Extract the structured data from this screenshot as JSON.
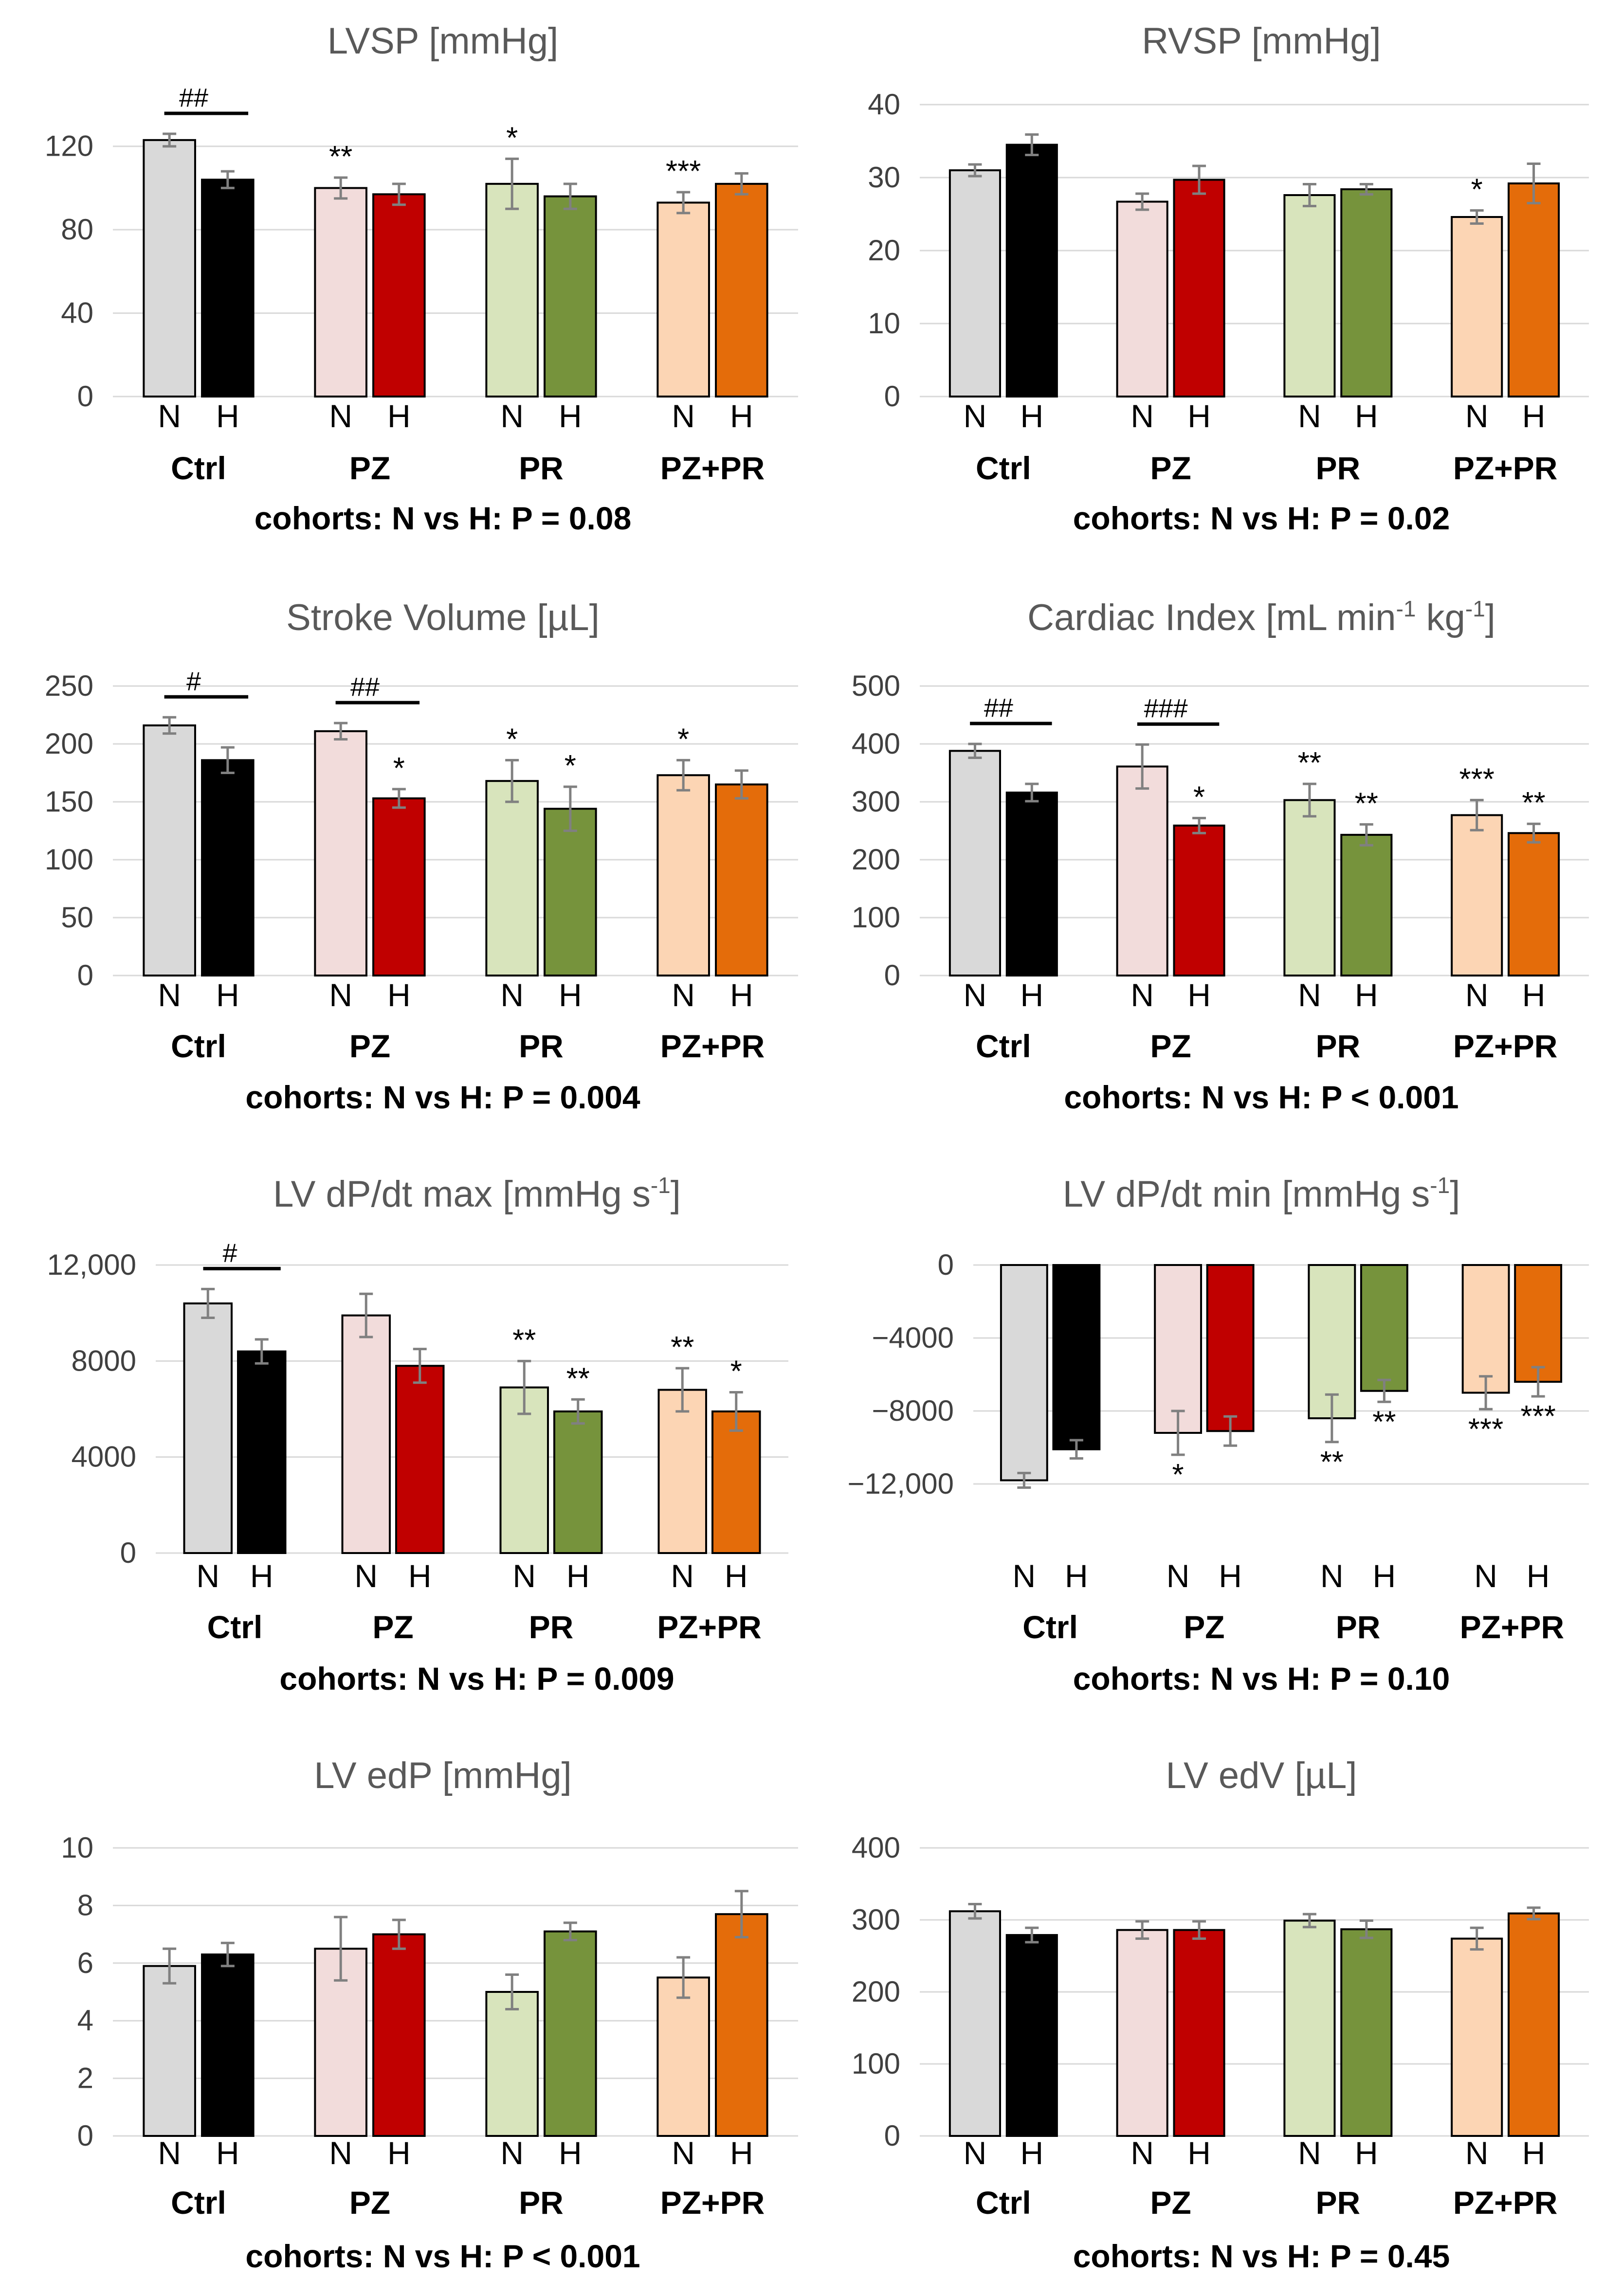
{
  "colors": {
    "N": [
      "#D9D9D9",
      "#F2DCDB",
      "#D8E4BC",
      "#FCD5B4"
    ],
    "H": [
      "#000000",
      "#C00000",
      "#76933C",
      "#E46C0A"
    ]
  },
  "chart_data": [
    {
      "type": "bar",
      "title": "LVSP [mmHg]",
      "groups": [
        "Ctrl",
        "PZ",
        "PR",
        "PZ+PR"
      ],
      "bar_labels": [
        "N",
        "H"
      ],
      "series": [
        {
          "name": "N",
          "values": [
            123,
            100,
            102,
            93
          ],
          "errors": [
            3,
            5,
            12,
            5
          ]
        },
        {
          "name": "H",
          "values": [
            104,
            97,
            96,
            102
          ],
          "errors": [
            4,
            5,
            6,
            5
          ]
        }
      ],
      "ylim": [
        0,
        140
      ],
      "yticks": [
        0,
        40,
        80,
        120
      ],
      "yticks_labels": [
        "0",
        "40",
        "80",
        "120"
      ],
      "stars": [
        {
          "group": 1,
          "bar": 0,
          "text": "**"
        },
        {
          "group": 2,
          "bar": 0,
          "text": "*"
        },
        {
          "group": 3,
          "bar": 0,
          "text": "***"
        }
      ],
      "hash": [
        {
          "group": 0,
          "text": "##"
        }
      ],
      "caption": "cohorts: N vs H: P = 0.08"
    },
    {
      "type": "bar",
      "title": "RVSP [mmHg]",
      "groups": [
        "Ctrl",
        "PZ",
        "PR",
        "PZ+PR"
      ],
      "bar_labels": [
        "N",
        "H"
      ],
      "series": [
        {
          "name": "N",
          "values": [
            31,
            26.7,
            27.6,
            24.6
          ],
          "errors": [
            0.8,
            1.1,
            1.5,
            0.9
          ]
        },
        {
          "name": "H",
          "values": [
            34.5,
            29.7,
            28.4,
            29.2
          ],
          "errors": [
            1.4,
            1.9,
            0.7,
            2.7
          ]
        }
      ],
      "ylim": [
        0,
        40
      ],
      "yticks": [
        0,
        10,
        20,
        30,
        40
      ],
      "yticks_labels": [
        "0",
        "10",
        "20",
        "30",
        "40"
      ],
      "stars": [
        {
          "group": 3,
          "bar": 0,
          "text": "*"
        }
      ],
      "hash": [],
      "caption": "cohorts: N vs H: P = 0.02"
    },
    {
      "type": "bar",
      "title": "Stroke Volume [µL]",
      "groups": [
        "Ctrl",
        "PZ",
        "PR",
        "PZ+PR"
      ],
      "bar_labels": [
        "N",
        "H"
      ],
      "series": [
        {
          "name": "N",
          "values": [
            216,
            211,
            168,
            173
          ],
          "errors": [
            7,
            7,
            18,
            13
          ]
        },
        {
          "name": "H",
          "values": [
            186,
            153,
            144,
            165
          ],
          "errors": [
            11,
            8,
            19,
            12
          ]
        }
      ],
      "ylim": [
        0,
        250
      ],
      "yticks": [
        0,
        50,
        100,
        150,
        200,
        250
      ],
      "yticks_labels": [
        "0",
        "50",
        "100",
        "150",
        "200",
        "250"
      ],
      "stars": [
        {
          "group": 1,
          "bar": 1,
          "text": "*"
        },
        {
          "group": 2,
          "bar": 0,
          "text": "*"
        },
        {
          "group": 2,
          "bar": 1,
          "text": "*"
        },
        {
          "group": 3,
          "bar": 0,
          "text": "*"
        }
      ],
      "hash": [
        {
          "group": 0,
          "text": "#"
        },
        {
          "group": 1,
          "text": "##"
        }
      ],
      "caption": "cohorts: N vs H: P = 0.004"
    },
    {
      "type": "bar",
      "title": "Cardiac Index [mL min-1 kg-1]",
      "title_parts": {
        "a": "Cardiac Index [mL min",
        "sup1": "-1",
        "b": " kg",
        "sup2": "-1",
        "c": "]"
      },
      "groups": [
        "Ctrl",
        "PZ",
        "PR",
        "PZ+PR"
      ],
      "bar_labels": [
        "N",
        "H"
      ],
      "series": [
        {
          "name": "N",
          "values": [
            388,
            361,
            303,
            277
          ],
          "errors": [
            12,
            38,
            28,
            26
          ]
        },
        {
          "name": "H",
          "values": [
            316,
            259,
            243,
            246
          ],
          "errors": [
            15,
            13,
            18,
            16
          ]
        }
      ],
      "ylim": [
        0,
        500
      ],
      "yticks": [
        0,
        100,
        200,
        300,
        400,
        500
      ],
      "yticks_labels": [
        "0",
        "100",
        "200",
        "300",
        "400",
        "500"
      ],
      "stars": [
        {
          "group": 1,
          "bar": 1,
          "text": "*"
        },
        {
          "group": 2,
          "bar": 0,
          "text": "**"
        },
        {
          "group": 2,
          "bar": 1,
          "text": "**"
        },
        {
          "group": 3,
          "bar": 0,
          "text": "***"
        },
        {
          "group": 3,
          "bar": 1,
          "text": "**"
        }
      ],
      "hash": [
        {
          "group": 0,
          "text": "##"
        },
        {
          "group": 1,
          "text": "###"
        }
      ],
      "caption": "cohorts: N vs H: P < 0.001"
    },
    {
      "type": "bar",
      "title": "LV dP/dt max [mmHg s-1]",
      "title_parts": {
        "a": "LV dP/dt max [mmHg s",
        "sup1": "-1",
        "b": "]"
      },
      "groups": [
        "Ctrl",
        "PZ",
        "PR",
        "PZ+PR"
      ],
      "bar_labels": [
        "N",
        "H"
      ],
      "series": [
        {
          "name": "N",
          "values": [
            10400,
            9900,
            6900,
            6800
          ],
          "errors": [
            600,
            900,
            1100,
            900
          ]
        },
        {
          "name": "H",
          "values": [
            8400,
            7800,
            5900,
            5900
          ],
          "errors": [
            500,
            700,
            500,
            800
          ]
        }
      ],
      "ylim": [
        0,
        12000
      ],
      "yticks": [
        0,
        4000,
        8000,
        12000
      ],
      "yticks_labels": [
        "0",
        "4000",
        "8000",
        "12,000"
      ],
      "stars": [
        {
          "group": 2,
          "bar": 0,
          "text": "**"
        },
        {
          "group": 2,
          "bar": 1,
          "text": "**"
        },
        {
          "group": 3,
          "bar": 0,
          "text": "**"
        },
        {
          "group": 3,
          "bar": 1,
          "text": "*"
        }
      ],
      "hash": [
        {
          "group": 0,
          "text": "#"
        }
      ],
      "caption": "cohorts: N vs H: P = 0.009"
    },
    {
      "type": "bar",
      "title": "LV dP/dt min [mmHg s-1]",
      "title_parts": {
        "a": "LV dP/dt min [mmHg s",
        "sup1": "-1",
        "b": "]"
      },
      "groups": [
        "Ctrl",
        "PZ",
        "PR",
        "PZ+PR"
      ],
      "bar_labels": [
        "N",
        "H"
      ],
      "series": [
        {
          "name": "N",
          "values": [
            -11800,
            -9200,
            -8400,
            -7000
          ],
          "errors": [
            400,
            1200,
            1300,
            900
          ]
        },
        {
          "name": "H",
          "values": [
            -10100,
            -9100,
            -6900,
            -6400
          ],
          "errors": [
            500,
            800,
            600,
            800
          ]
        }
      ],
      "ylim": [
        -12000,
        0
      ],
      "yticks": [
        -12000,
        -8000,
        -4000,
        0
      ],
      "yticks_labels": [
        "−12,000",
        "−8000",
        "−4000",
        "0"
      ],
      "stars": [
        {
          "group": 1,
          "bar": 0,
          "text": "*"
        },
        {
          "group": 2,
          "bar": 0,
          "text": "**"
        },
        {
          "group": 2,
          "bar": 1,
          "text": "**"
        },
        {
          "group": 3,
          "bar": 0,
          "text": "***"
        },
        {
          "group": 3,
          "bar": 1,
          "text": "***"
        }
      ],
      "hash": [],
      "caption": "cohorts: N vs H: P = 0.10"
    },
    {
      "type": "bar",
      "title": "LV edP [mmHg]",
      "groups": [
        "Ctrl",
        "PZ",
        "PR",
        "PZ+PR"
      ],
      "bar_labels": [
        "N",
        "H"
      ],
      "series": [
        {
          "name": "N",
          "values": [
            5.9,
            6.5,
            5.0,
            5.5
          ],
          "errors": [
            0.6,
            1.1,
            0.6,
            0.7
          ]
        },
        {
          "name": "H",
          "values": [
            6.3,
            7.0,
            7.1,
            7.7
          ],
          "errors": [
            0.4,
            0.5,
            0.3,
            0.8
          ]
        }
      ],
      "ylim": [
        0,
        10
      ],
      "yticks": [
        0,
        2,
        4,
        6,
        8,
        10
      ],
      "yticks_labels": [
        "0",
        "2",
        "4",
        "6",
        "8",
        "10"
      ],
      "stars": [],
      "hash": [],
      "caption": "cohorts: N vs H: P < 0.001"
    },
    {
      "type": "bar",
      "title": "LV edV [µL]",
      "groups": [
        "Ctrl",
        "PZ",
        "PR",
        "PZ+PR"
      ],
      "bar_labels": [
        "N",
        "H"
      ],
      "series": [
        {
          "name": "N",
          "values": [
            312,
            286,
            299,
            274
          ],
          "errors": [
            10,
            12,
            9,
            15
          ]
        },
        {
          "name": "H",
          "values": [
            279,
            286,
            287,
            309
          ],
          "errors": [
            10,
            12,
            12,
            8
          ]
        }
      ],
      "ylim": [
        0,
        400
      ],
      "yticks": [
        0,
        100,
        200,
        300,
        400
      ],
      "yticks_labels": [
        "0",
        "100",
        "200",
        "300",
        "400"
      ],
      "stars": [],
      "hash": [],
      "caption": "cohorts: N vs H: P = 0.45"
    }
  ]
}
